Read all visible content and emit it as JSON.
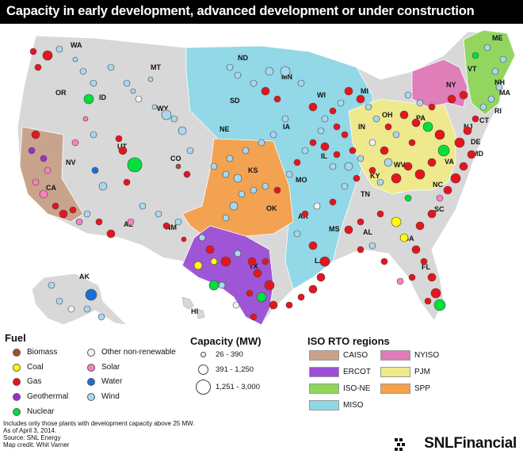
{
  "title": "Capacity in early development, advanced development or under construction",
  "state_labels": [
    "WA",
    "OR",
    "ID",
    "MT",
    "WY",
    "ND",
    "SD",
    "NE",
    "MN",
    "WI",
    "MI",
    "IA",
    "IL",
    "IN",
    "OH",
    "NY",
    "PA",
    "NJ",
    "DE",
    "MD",
    "VA",
    "WV",
    "KY",
    "TN",
    "NC",
    "SC",
    "GA",
    "AL",
    "MS",
    "LA",
    "AR",
    "MO",
    "KS",
    "OK",
    "TX",
    "NM",
    "AZ",
    "CO",
    "UT",
    "NV",
    "CA",
    "FL",
    "ME",
    "VT",
    "NH",
    "MA",
    "RI",
    "CT",
    "AK",
    "HI"
  ],
  "legend": {
    "fuel_title": "Fuel",
    "fuel_items": [
      {
        "label": "Biomass",
        "color": "#a0522d"
      },
      {
        "label": "Coal",
        "color": "#ffff00"
      },
      {
        "label": "Gas",
        "color": "#e8141b"
      },
      {
        "label": "Geothermal",
        "color": "#9b30d0"
      },
      {
        "label": "Nuclear",
        "color": "#00e03a"
      },
      {
        "label": "Other non-renewable",
        "color": "#f2f2f2"
      },
      {
        "label": "Solar",
        "color": "#ff7fc0"
      },
      {
        "label": "Water",
        "color": "#1a6fd6"
      },
      {
        "label": "Wind",
        "color": "#a8d8f0"
      }
    ],
    "capacity_title": "Capacity (MW)",
    "capacity_items": [
      "26 - 390",
      "391 - 1,250",
      "1,251 - 3,000"
    ],
    "rto_title": "ISO RTO regions",
    "rto_items": [
      {
        "label": "CAISO",
        "color": "#c9a28a"
      },
      {
        "label": "NYISO",
        "color": "#e07ab8"
      },
      {
        "label": "ERCOT",
        "color": "#9b4fd6"
      },
      {
        "label": "PJM",
        "color": "#f0ea8a"
      },
      {
        "label": "ISO-NE",
        "color": "#8fd65a"
      },
      {
        "label": "SPP",
        "color": "#f5a04a"
      },
      {
        "label": "MISO",
        "color": "#8fd8e8"
      }
    ]
  },
  "footnotes": [
    "Includes only those plants with development capacity above 25 MW.",
    "As of April 3, 2014.",
    "Source: SNL Energy",
    "Map credit: Whit Varner"
  ],
  "brand": "SNLFinancial",
  "colors": {
    "map_base": "#d8d8d8",
    "water": "#ffffff",
    "title_bg": "#000000"
  }
}
